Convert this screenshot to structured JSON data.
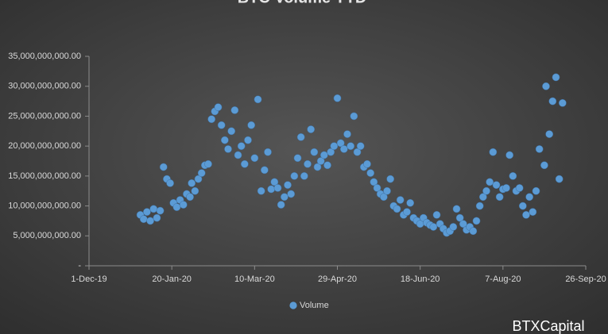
{
  "chart_data": {
    "type": "scatter",
    "title": "BTC Volume YTD",
    "watermark": "BTXCapital",
    "series": [
      {
        "name": "Volume",
        "color": "#5b9bd5",
        "x": [
          "2020-01-01",
          "2020-01-03",
          "2020-01-05",
          "2020-01-07",
          "2020-01-09",
          "2020-01-11",
          "2020-01-13",
          "2020-01-15",
          "2020-01-17",
          "2020-01-19",
          "2020-01-21",
          "2020-01-23",
          "2020-01-25",
          "2020-01-27",
          "2020-01-29",
          "2020-01-31",
          "2020-02-01",
          "2020-02-03",
          "2020-02-05",
          "2020-02-07",
          "2020-02-09",
          "2020-02-11",
          "2020-02-13",
          "2020-02-15",
          "2020-02-17",
          "2020-02-19",
          "2020-02-21",
          "2020-02-23",
          "2020-02-25",
          "2020-02-27",
          "2020-02-29",
          "2020-03-02",
          "2020-03-04",
          "2020-03-06",
          "2020-03-08",
          "2020-03-10",
          "2020-03-12",
          "2020-03-14",
          "2020-03-16",
          "2020-03-18",
          "2020-03-20",
          "2020-03-22",
          "2020-03-24",
          "2020-03-26",
          "2020-03-28",
          "2020-03-30",
          "2020-04-01",
          "2020-04-03",
          "2020-04-05",
          "2020-04-07",
          "2020-04-09",
          "2020-04-11",
          "2020-04-13",
          "2020-04-15",
          "2020-04-17",
          "2020-04-19",
          "2020-04-21",
          "2020-04-23",
          "2020-04-25",
          "2020-04-27",
          "2020-04-29",
          "2020-05-01",
          "2020-05-03",
          "2020-05-05",
          "2020-05-07",
          "2020-05-09",
          "2020-05-11",
          "2020-05-13",
          "2020-05-15",
          "2020-05-17",
          "2020-05-19",
          "2020-05-21",
          "2020-05-23",
          "2020-05-25",
          "2020-05-27",
          "2020-05-29",
          "2020-05-31",
          "2020-06-02",
          "2020-06-04",
          "2020-06-06",
          "2020-06-08",
          "2020-06-10",
          "2020-06-12",
          "2020-06-14",
          "2020-06-16",
          "2020-06-18",
          "2020-06-20",
          "2020-06-22",
          "2020-06-24",
          "2020-06-26",
          "2020-06-28",
          "2020-06-30",
          "2020-07-02",
          "2020-07-04",
          "2020-07-06",
          "2020-07-08",
          "2020-07-10",
          "2020-07-12",
          "2020-07-14",
          "2020-07-16",
          "2020-07-18",
          "2020-07-20",
          "2020-07-22",
          "2020-07-24",
          "2020-07-26",
          "2020-07-28",
          "2020-07-30",
          "2020-08-01",
          "2020-08-03",
          "2020-08-05",
          "2020-08-07",
          "2020-08-09",
          "2020-08-11",
          "2020-08-13",
          "2020-08-15",
          "2020-08-17",
          "2020-08-19",
          "2020-08-21",
          "2020-08-23",
          "2020-08-25",
          "2020-08-27",
          "2020-08-29",
          "2020-09-01",
          "2020-09-02",
          "2020-09-04",
          "2020-09-06",
          "2020-09-08",
          "2020-09-10",
          "2020-09-12"
        ],
        "values": [
          8500000000.0,
          7800000000.0,
          9000000000.0,
          7500000000.0,
          9500000000.0,
          8000000000.0,
          9200000000.0,
          16500000000.0,
          14500000000.0,
          13800000000.0,
          10500000000.0,
          9800000000.0,
          11000000000.0,
          10200000000.0,
          12000000000.0,
          11500000000.0,
          13800000000.0,
          12500000000.0,
          14500000000.0,
          15500000000.0,
          16800000000.0,
          17000000000.0,
          24500000000.0,
          25800000000.0,
          26500000000.0,
          23500000000.0,
          21000000000.0,
          19500000000.0,
          22500000000.0,
          26000000000.0,
          18500000000.0,
          20000000000.0,
          17000000000.0,
          21000000000.0,
          23500000000.0,
          18000000000.0,
          27800000000.0,
          12500000000.0,
          16000000000.0,
          19000000000.0,
          12800000000.0,
          14000000000.0,
          13000000000.0,
          10200000000.0,
          11500000000.0,
          13500000000.0,
          12000000000.0,
          15000000000.0,
          18000000000.0,
          21500000000.0,
          15000000000.0,
          17000000000.0,
          22800000000.0,
          19000000000.0,
          16500000000.0,
          17500000000.0,
          18500000000.0,
          16800000000.0,
          19000000000.0,
          20000000000.0,
          28000000000.0,
          20500000000.0,
          19500000000.0,
          22000000000.0,
          20000000000.0,
          25000000000.0,
          19000000000.0,
          20000000000.0,
          16500000000.0,
          17000000000.0,
          15500000000.0,
          14000000000.0,
          13000000000.0,
          12000000000.0,
          11500000000.0,
          12500000000.0,
          14500000000.0,
          10000000000.0,
          9500000000.0,
          11000000000.0,
          8500000000.0,
          9000000000.0,
          10500000000.0,
          8000000000.0,
          7500000000.0,
          7000000000.0,
          8000000000.0,
          7200000000.0,
          6800000000.0,
          6500000000.0,
          8500000000.0,
          7000000000.0,
          6200000000.0,
          5500000000.0,
          5800000000.0,
          6500000000.0,
          9500000000.0,
          8000000000.0,
          7000000000.0,
          6000000000.0,
          6500000000.0,
          5800000000.0,
          7500000000.0,
          10000000000.0,
          11500000000.0,
          12500000000.0,
          14000000000.0,
          19000000000.0,
          13500000000.0,
          11500000000.0,
          12800000000.0,
          13000000000.0,
          18500000000.0,
          15000000000.0,
          12500000000.0,
          13000000000.0,
          10000000000.0,
          8500000000.0,
          11500000000.0,
          9000000000.0,
          12500000000.0,
          19500000000.0,
          16800000000.0,
          30000000000.0,
          22000000000.0,
          27500000000.0,
          31500000000.0,
          14500000000.0,
          27200000000.0
        ]
      }
    ],
    "xlim": [
      "2019-12-01",
      "2020-09-26"
    ],
    "xticks": [
      {
        "value": "2019-12-01",
        "label": "1-Dec-19"
      },
      {
        "value": "2020-01-20",
        "label": "20-Jan-20"
      },
      {
        "value": "2020-03-10",
        "label": "10-Mar-20"
      },
      {
        "value": "2020-04-29",
        "label": "29-Apr-20"
      },
      {
        "value": "2020-06-18",
        "label": "18-Jun-20"
      },
      {
        "value": "2020-08-07",
        "label": "7-Aug-20"
      },
      {
        "value": "2020-09-26",
        "label": "26-Sep-20"
      }
    ],
    "ylim": [
      0,
      35000000000
    ],
    "yticks": [
      {
        "value": 0,
        "label": "-"
      },
      {
        "value": 5000000000,
        "label": "5,000,000,000.00"
      },
      {
        "value": 10000000000,
        "label": "10,000,000,000.00"
      },
      {
        "value": 15000000000,
        "label": "15,000,000,000.00"
      },
      {
        "value": 20000000000,
        "label": "20,000,000,000.00"
      },
      {
        "value": 25000000000,
        "label": "25,000,000,000.00"
      },
      {
        "value": 30000000000,
        "label": "30,000,000,000.00"
      },
      {
        "value": 35000000000,
        "label": "35,000,000,000.00"
      }
    ],
    "legend": "bottom",
    "grid": false
  }
}
